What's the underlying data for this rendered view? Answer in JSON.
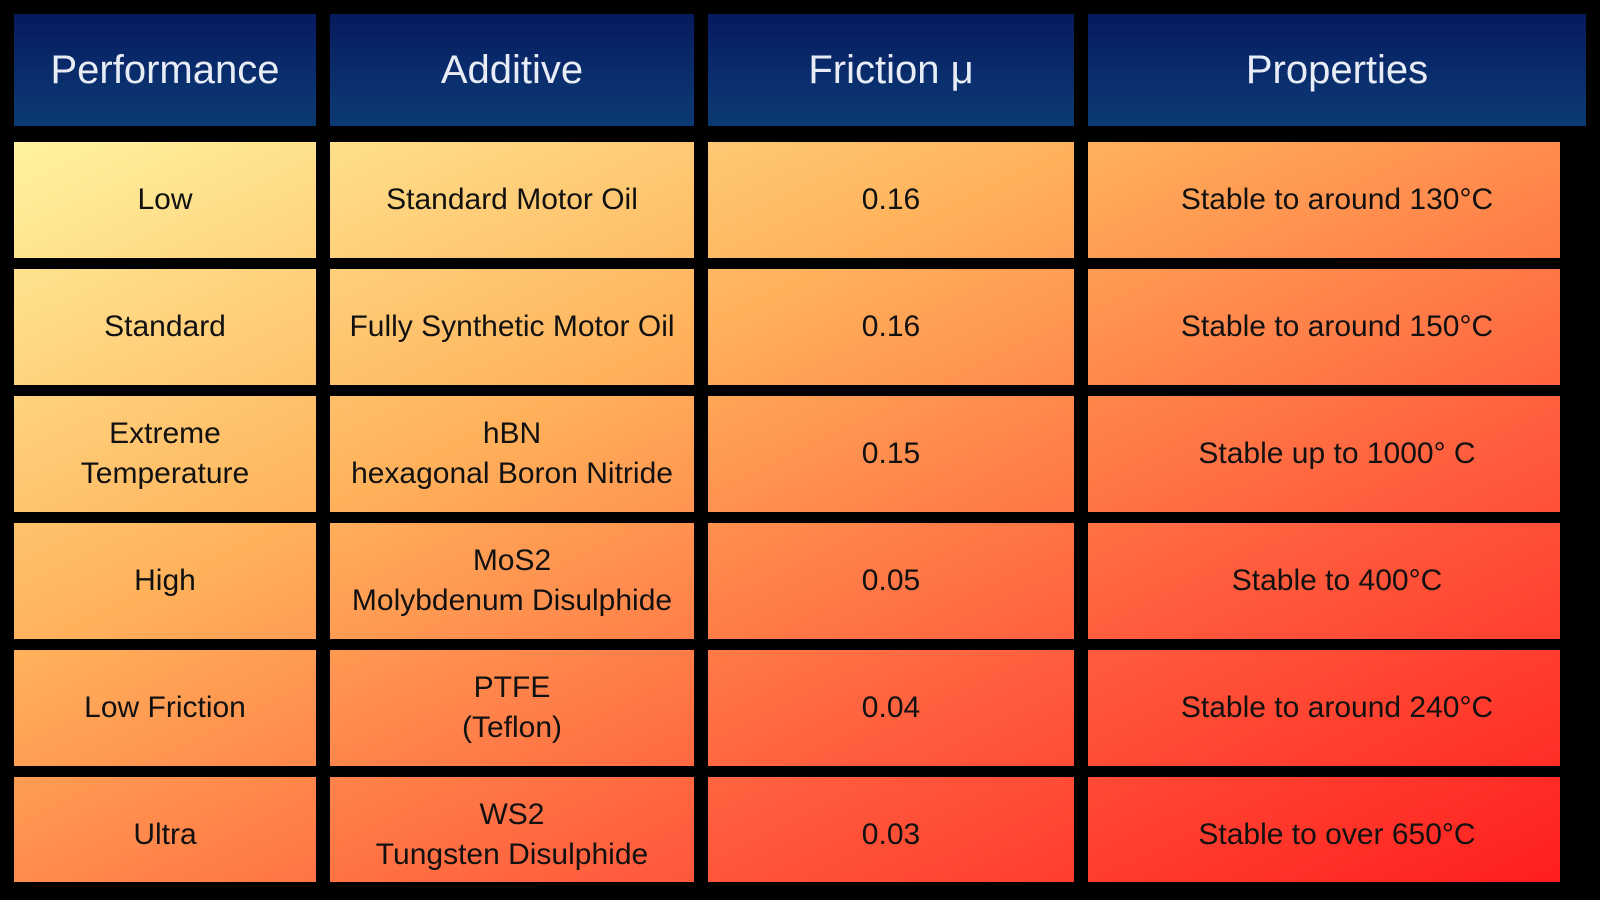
{
  "header": {
    "performance": "Performance",
    "additive": "Additive",
    "friction": "Friction μ",
    "properties": "Properties"
  },
  "rows": [
    {
      "performance": [
        "Low"
      ],
      "additive": [
        "Standard Motor Oil"
      ],
      "friction": "0.16",
      "properties": "Stable to around 130°C"
    },
    {
      "performance": [
        "Standard"
      ],
      "additive": [
        "Fully Synthetic Motor Oil"
      ],
      "friction": "0.16",
      "properties": "Stable to around 150°C"
    },
    {
      "performance": [
        "Extreme",
        "Temperature"
      ],
      "additive": [
        "hBN",
        "hexagonal Boron Nitride"
      ],
      "friction": "0.15",
      "properties": "Stable up to 1000° C"
    },
    {
      "performance": [
        "High"
      ],
      "additive": [
        "MoS2",
        "Molybdenum Disulphide"
      ],
      "friction": "0.05",
      "properties": "Stable to 400°C"
    },
    {
      "performance": [
        "Low Friction"
      ],
      "additive": [
        "PTFE",
        "(Teflon)"
      ],
      "friction": "0.04",
      "properties": "Stable to around 240°C"
    },
    {
      "performance": [
        "Ultra"
      ],
      "additive": [
        "WS2",
        "Tungsten Disulphide"
      ],
      "friction": "0.03",
      "properties": "Stable to over 650°C"
    }
  ],
  "colors": {
    "header_top": "#061a5e",
    "header_bottom": "#0d3a72",
    "body_top_left": "#fff3a0",
    "body_mid": "#ff5a3c",
    "body_bottom_right": "#ff1e1e",
    "grid": "#000000"
  }
}
